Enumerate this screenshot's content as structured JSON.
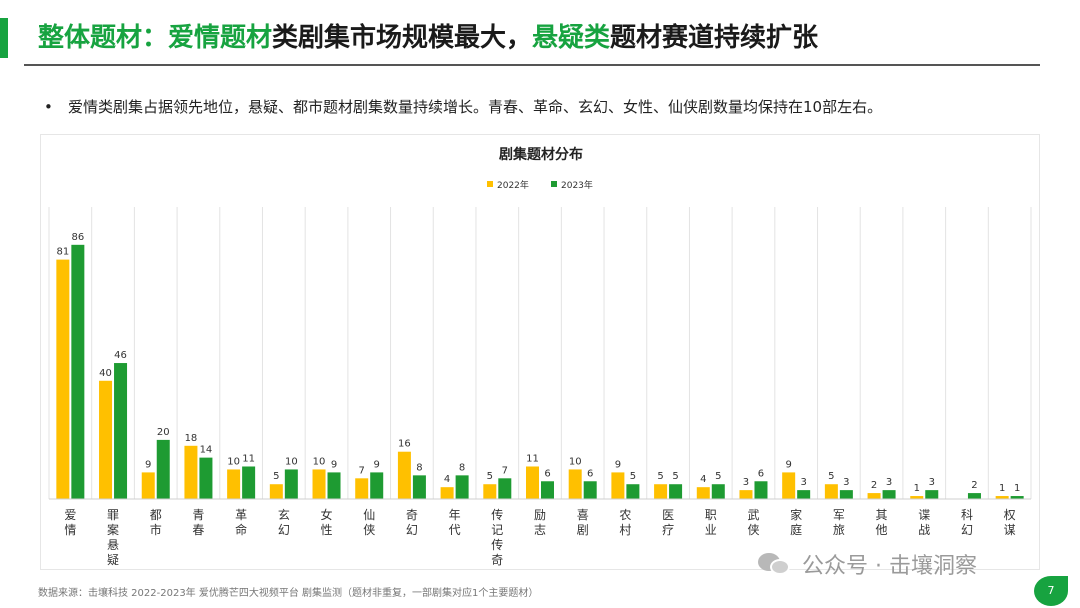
{
  "header": {
    "title_hl1": "整体题材：爱情题材",
    "title_mid1": "类剧集市场规模最大，",
    "title_hl2": "悬疑类",
    "title_mid2": "题材赛道持续扩张"
  },
  "bullet": {
    "marker": "•",
    "text": "爱情类剧集占据领先地位，悬疑、都市题材剧集数量持续增长。青春、革命、玄幻、女性、仙侠剧数量均保持在10部左右。"
  },
  "footer": {
    "source": "数据来源：击壤科技 2022-2023年 爱优腾芒四大视频平台 剧集监测（题材非重复，一部剧集对应1个主要题材）",
    "watermark": "公众号 · 击壤洞察",
    "page_number": "7"
  },
  "colors": {
    "accent": "#17a340",
    "series_2022": "#ffc000",
    "series_2023": "#1e9b32"
  },
  "chart_data": {
    "type": "bar",
    "title": "剧集题材分布",
    "legend_position": "top-center",
    "grid": "vertical-separators",
    "categories": [
      "爱情",
      "罪案悬疑",
      "都市",
      "青春",
      "革命",
      "玄幻",
      "女性",
      "仙侠",
      "奇幻",
      "年代",
      "传记传奇",
      "励志",
      "喜剧",
      "农村",
      "医疗",
      "职业",
      "武侠",
      "家庭",
      "军旅",
      "其他",
      "谍战",
      "科幻",
      "权谋"
    ],
    "series": [
      {
        "name": "2022年",
        "values": [
          81,
          40,
          9,
          18,
          10,
          5,
          10,
          7,
          16,
          4,
          5,
          11,
          10,
          9,
          5,
          4,
          3,
          9,
          5,
          2,
          1,
          0,
          1
        ]
      },
      {
        "name": "2023年",
        "values": [
          86,
          46,
          20,
          14,
          11,
          10,
          9,
          9,
          8,
          8,
          7,
          6,
          6,
          5,
          5,
          5,
          6,
          3,
          3,
          3,
          3,
          2,
          1
        ]
      }
    ],
    "ylim": [
      0,
      90
    ]
  }
}
